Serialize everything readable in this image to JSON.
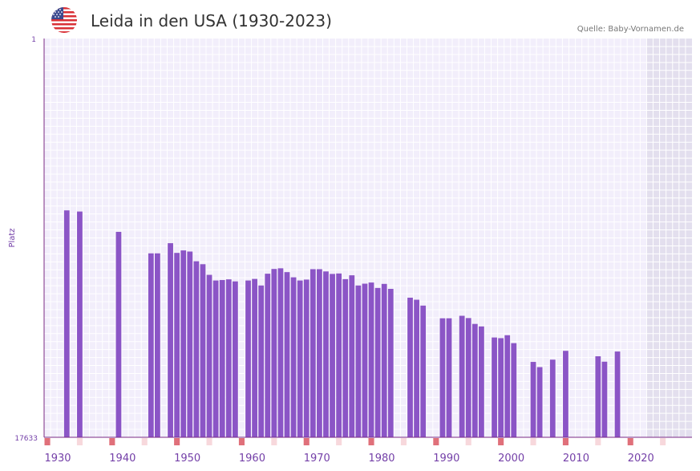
{
  "header": {
    "title": "Leida in den USA (1930-2023)",
    "source": "Quelle: Baby-Vornamen.de",
    "flag_icon": "us-flag-icon"
  },
  "colors": {
    "bar": "#8b55c6",
    "axis": "#7b2a84",
    "grid_bg": "#f2eefb",
    "future_bg": "#e3dfee",
    "decade_marker": "#e0707a",
    "half_decade_marker": "#f7d8dc",
    "tick_label": "#7440a8"
  },
  "chart_data": {
    "type": "bar",
    "title": "Leida in den USA (1930-2023)",
    "ylabel": "Platz",
    "xlabel": "",
    "y_reversed": true,
    "ylim": [
      1,
      17633
    ],
    "xlim": [
      1929.5,
      2029.5
    ],
    "future_shade_from": 2022.5,
    "y_tick_labels": [
      "1",
      "17633"
    ],
    "x_tick_labels": [
      "1930",
      "1940",
      "1950",
      "1960",
      "1970",
      "1980",
      "1990",
      "2000",
      "2010",
      "2020"
    ],
    "x_tick_values": [
      1930,
      1940,
      1950,
      1960,
      1970,
      1980,
      1990,
      2000,
      2010,
      2020
    ],
    "years": [
      1933,
      1935,
      1941,
      1946,
      1947,
      1949,
      1950,
      1951,
      1952,
      1953,
      1954,
      1955,
      1956,
      1957,
      1958,
      1959,
      1961,
      1962,
      1963,
      1964,
      1965,
      1966,
      1967,
      1968,
      1969,
      1970,
      1971,
      1972,
      1973,
      1974,
      1975,
      1976,
      1977,
      1978,
      1979,
      1980,
      1981,
      1982,
      1983,
      1986,
      1987,
      1988,
      1991,
      1992,
      1994,
      1995,
      1996,
      1997,
      1999,
      2000,
      2001,
      2002,
      2005,
      2006,
      2008,
      2010,
      2015,
      2016,
      2018
    ],
    "values": [
      7600,
      7650,
      8550,
      9500,
      9500,
      9050,
      9480,
      9370,
      9420,
      9850,
      9980,
      10450,
      10700,
      10680,
      10650,
      10740,
      10700,
      10630,
      10920,
      10400,
      10190,
      10160,
      10330,
      10560,
      10700,
      10660,
      10200,
      10200,
      10300,
      10410,
      10390,
      10640,
      10470,
      10920,
      10840,
      10790,
      11030,
      10850,
      11070,
      11460,
      11550,
      11810,
      12370,
      12370,
      12260,
      12360,
      12620,
      12730,
      13220,
      13250,
      13120,
      13470,
      14300,
      14530,
      14200,
      13810,
      14050,
      14290,
      13840
    ]
  }
}
